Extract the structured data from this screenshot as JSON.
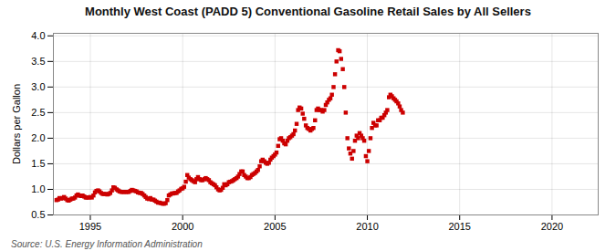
{
  "chart_data": {
    "type": "scatter",
    "title": "Monthly West Coast (PADD 5) Conventional Gasoline Retail Sales by All Sellers",
    "ylabel": "Dollars per Gallon",
    "annotations": [
      "Source: U.S. Energy Information Administration"
    ],
    "color": "#CC0000",
    "marker": "square",
    "grid": true,
    "xlim": [
      1993.0,
      2022.5
    ],
    "xticks": [
      1995,
      2000,
      2005,
      2010,
      2015,
      2020
    ],
    "ylim": [
      0.5,
      4.05
    ],
    "yticks": [
      0.5,
      {
        "value": 1.0,
        "label": "1.0"
      },
      1.5,
      {
        "value": 2.0,
        "label": "2.0"
      },
      2.5,
      {
        "value": 3.0,
        "label": "3.0"
      },
      3.5,
      {
        "value": 4.0,
        "label": "4.0"
      }
    ],
    "x": [
      1993.17,
      1993.25,
      1993.33,
      1993.42,
      1993.5,
      1993.58,
      1993.67,
      1993.75,
      1993.83,
      1993.92,
      1994.0,
      1994.08,
      1994.17,
      1994.25,
      1994.33,
      1994.42,
      1994.5,
      1994.58,
      1994.67,
      1994.75,
      1994.83,
      1994.92,
      1995.0,
      1995.08,
      1995.17,
      1995.25,
      1995.33,
      1995.42,
      1995.5,
      1995.58,
      1995.67,
      1995.75,
      1995.83,
      1995.92,
      1996.0,
      1996.08,
      1996.17,
      1996.25,
      1996.33,
      1996.42,
      1996.5,
      1996.58,
      1996.67,
      1996.75,
      1996.83,
      1996.92,
      1997.0,
      1997.08,
      1997.17,
      1997.25,
      1997.33,
      1997.42,
      1997.5,
      1997.58,
      1997.67,
      1997.75,
      1997.83,
      1997.92,
      1998.0,
      1998.08,
      1998.17,
      1998.25,
      1998.33,
      1998.42,
      1998.5,
      1998.58,
      1998.67,
      1998.75,
      1998.83,
      1998.92,
      1999.0,
      1999.08,
      1999.17,
      1999.25,
      1999.33,
      1999.42,
      1999.5,
      1999.58,
      1999.67,
      1999.75,
      1999.83,
      1999.92,
      2000.0,
      2000.08,
      2000.17,
      2000.25,
      2000.33,
      2000.42,
      2000.5,
      2000.58,
      2000.67,
      2000.75,
      2000.83,
      2000.92,
      2001.0,
      2001.08,
      2001.17,
      2001.25,
      2001.33,
      2001.42,
      2001.5,
      2001.58,
      2001.67,
      2001.75,
      2001.83,
      2001.92,
      2002.0,
      2002.08,
      2002.17,
      2002.25,
      2002.33,
      2002.42,
      2002.5,
      2002.58,
      2002.67,
      2002.75,
      2002.83,
      2002.92,
      2003.0,
      2003.08,
      2003.17,
      2003.25,
      2003.33,
      2003.42,
      2003.5,
      2003.58,
      2003.67,
      2003.75,
      2003.83,
      2003.92,
      2004.0,
      2004.08,
      2004.17,
      2004.25,
      2004.33,
      2004.42,
      2004.5,
      2004.58,
      2004.67,
      2004.75,
      2004.83,
      2004.92,
      2005.0,
      2005.08,
      2005.17,
      2005.25,
      2005.33,
      2005.42,
      2005.5,
      2005.58,
      2005.67,
      2005.75,
      2005.83,
      2005.92,
      2006.0,
      2006.08,
      2006.17,
      2006.25,
      2006.33,
      2006.42,
      2006.5,
      2006.58,
      2006.67,
      2006.75,
      2006.83,
      2006.92,
      2007.0,
      2007.08,
      2007.17,
      2007.25,
      2007.33,
      2007.42,
      2007.5,
      2007.58,
      2007.67,
      2007.75,
      2007.83,
      2007.92,
      2008.0,
      2008.08,
      2008.17,
      2008.25,
      2008.33,
      2008.42,
      2008.5,
      2008.58,
      2008.67,
      2008.75,
      2008.83,
      2008.92,
      2009.0,
      2009.08,
      2009.17,
      2009.25,
      2009.33,
      2009.42,
      2009.5,
      2009.58,
      2009.67,
      2009.75,
      2009.83,
      2009.92,
      2010.0,
      2010.08,
      2010.17,
      2010.25,
      2010.33,
      2010.42,
      2010.5,
      2010.58,
      2010.67,
      2010.75,
      2010.83,
      2010.92,
      2011.0,
      2011.08,
      2011.17,
      2011.25,
      2011.33,
      2011.42,
      2011.5,
      2011.58,
      2011.67,
      2011.75,
      2011.83,
      2011.92
    ],
    "values": [
      0.79,
      0.8,
      0.83,
      0.82,
      0.83,
      0.85,
      0.82,
      0.79,
      0.78,
      0.8,
      0.82,
      0.82,
      0.84,
      0.88,
      0.9,
      0.88,
      0.87,
      0.88,
      0.86,
      0.84,
      0.84,
      0.84,
      0.85,
      0.84,
      0.88,
      0.94,
      0.97,
      0.98,
      0.96,
      0.93,
      0.91,
      0.91,
      0.91,
      0.9,
      0.91,
      0.93,
      0.98,
      1.04,
      1.03,
      1.0,
      0.98,
      0.96,
      0.95,
      0.95,
      0.95,
      0.95,
      0.95,
      0.95,
      0.97,
      0.99,
      0.98,
      0.97,
      0.96,
      0.94,
      0.93,
      0.93,
      0.91,
      0.88,
      0.85,
      0.82,
      0.81,
      0.83,
      0.8,
      0.8,
      0.78,
      0.76,
      0.74,
      0.74,
      0.73,
      0.72,
      0.72,
      0.73,
      0.79,
      0.88,
      0.9,
      0.92,
      0.92,
      0.93,
      0.93,
      0.96,
      0.98,
      1.01,
      1.02,
      1.05,
      1.15,
      1.28,
      1.23,
      1.2,
      1.18,
      1.16,
      1.14,
      1.2,
      1.24,
      1.2,
      1.18,
      1.18,
      1.2,
      1.22,
      1.2,
      1.18,
      1.14,
      1.12,
      1.1,
      1.08,
      1.04,
      1.0,
      0.98,
      0.99,
      1.03,
      1.1,
      1.08,
      1.1,
      1.14,
      1.15,
      1.16,
      1.18,
      1.2,
      1.22,
      1.25,
      1.3,
      1.35,
      1.35,
      1.28,
      1.25,
      1.22,
      1.22,
      1.24,
      1.28,
      1.3,
      1.32,
      1.35,
      1.38,
      1.45,
      1.55,
      1.58,
      1.55,
      1.52,
      1.5,
      1.52,
      1.58,
      1.62,
      1.65,
      1.68,
      1.72,
      1.85,
      1.98,
      2.0,
      1.95,
      1.9,
      1.88,
      1.95,
      2.0,
      2.02,
      2.05,
      2.08,
      2.15,
      2.28,
      2.55,
      2.6,
      2.58,
      2.48,
      2.38,
      2.25,
      2.2,
      2.18,
      2.15,
      2.18,
      2.2,
      2.35,
      2.55,
      2.58,
      2.55,
      2.55,
      2.52,
      2.55,
      2.65,
      2.7,
      2.75,
      2.78,
      2.85,
      3.0,
      3.25,
      3.5,
      3.72,
      3.7,
      3.55,
      3.35,
      3.0,
      2.5,
      2.0,
      1.8,
      1.7,
      1.6,
      1.75,
      1.95,
      2.05,
      2.0,
      2.1,
      2.05,
      2.0,
      1.95,
      1.65,
      1.55,
      1.75,
      2.0,
      2.2,
      2.3,
      2.25,
      2.25,
      2.35,
      2.35,
      2.4,
      2.4,
      2.45,
      2.5,
      2.55,
      2.8,
      2.85,
      2.82,
      2.78,
      2.75,
      2.72,
      2.68,
      2.62,
      2.55,
      2.5
    ]
  }
}
